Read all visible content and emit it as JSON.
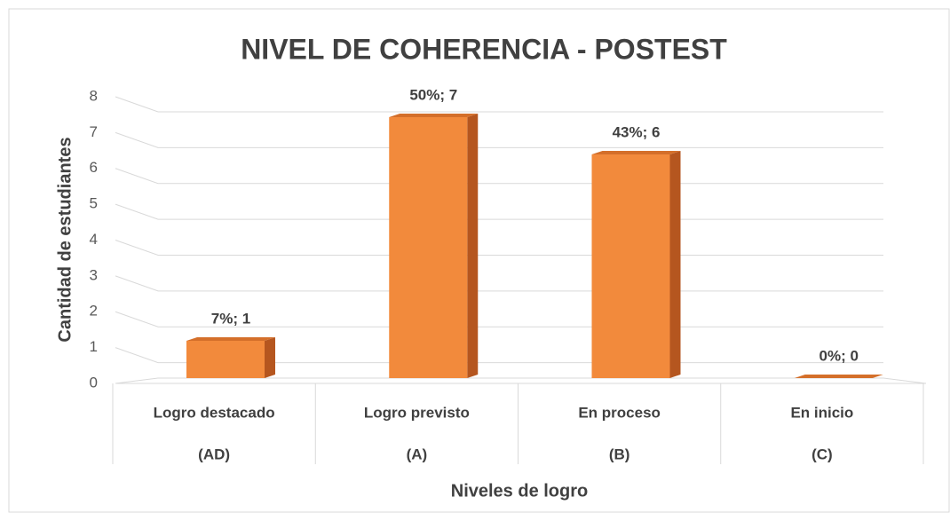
{
  "chart_data": {
    "type": "bar3d",
    "title": "NIVEL DE COHERENCIA - POSTEST",
    "categories": [
      [
        "Logro destacado",
        "(AD)"
      ],
      [
        "Logro previsto",
        "(A)"
      ],
      [
        "En proceso",
        "(B)"
      ],
      [
        "En inicio",
        "(C)"
      ]
    ],
    "values": [
      1,
      7,
      6,
      0
    ],
    "value_labels": [
      "7%; 1",
      "50%; 7",
      "43%; 6",
      "0%; 0"
    ],
    "color": "#f28a3c",
    "ylim": [
      0,
      8
    ],
    "yticks": [
      0,
      1,
      2,
      3,
      4,
      5,
      6,
      7,
      8
    ],
    "grid": true,
    "y_label": "Cantidad de estudiantes",
    "x_label": "Niveles de logro"
  }
}
